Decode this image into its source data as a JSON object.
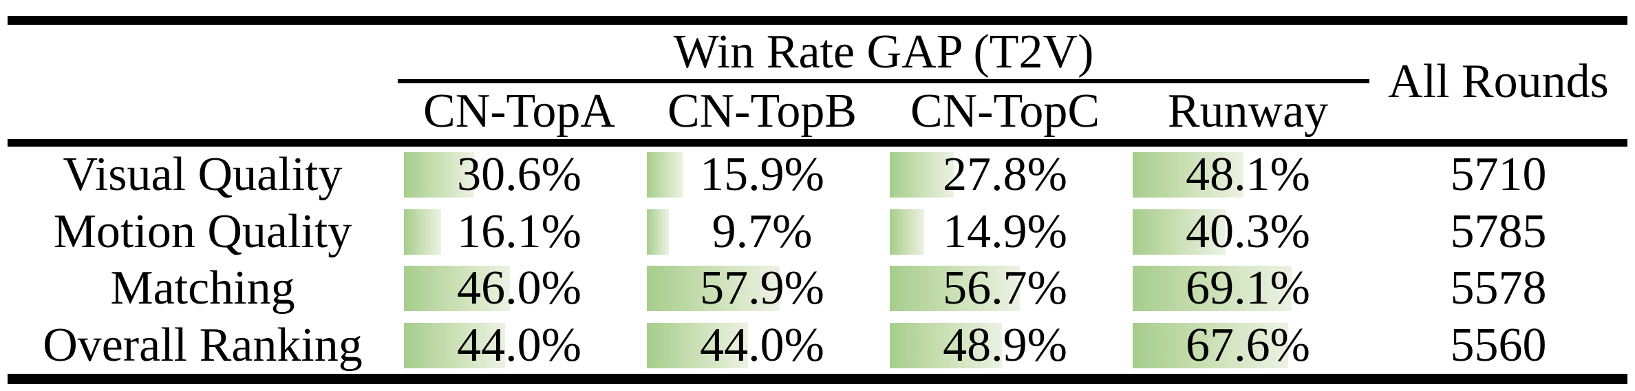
{
  "colors": {
    "rule": "#000000",
    "bar-start": "#a6cd8c",
    "bar-mid": "#cfe2ba",
    "bar-end": "#ecf2e4"
  },
  "table": {
    "group_title": "Win Rate GAP (T2V)",
    "all_rounds_header": "All Rounds",
    "columns": [
      "CN-TopA",
      "CN-TopB",
      "CN-TopC",
      "Runway"
    ],
    "rows": [
      {
        "label": "Visual Quality",
        "values": [
          30.6,
          15.9,
          27.8,
          48.1
        ],
        "display": [
          "30.6%",
          "15.9%",
          "27.8%",
          "48.1%"
        ],
        "all_rounds": "5710"
      },
      {
        "label": "Motion Quality",
        "values": [
          16.1,
          9.7,
          14.9,
          40.3
        ],
        "display": [
          "16.1%",
          "9.7%",
          "14.9%",
          "40.3%"
        ],
        "all_rounds": "5785"
      },
      {
        "label": "Matching",
        "values": [
          46.0,
          57.9,
          56.7,
          69.1
        ],
        "display": [
          "46.0%",
          "57.9%",
          "56.7%",
          "69.1%"
        ],
        "all_rounds": "5578"
      },
      {
        "label": "Overall Ranking",
        "values": [
          44.0,
          44.0,
          48.9,
          67.6
        ],
        "display": [
          "44.0%",
          "44.0%",
          "48.9%",
          "67.6%"
        ],
        "all_rounds": "5560"
      }
    ]
  },
  "chart_data": {
    "type": "table",
    "title": "Win Rate GAP (T2V)",
    "columns": [
      "CN-TopA",
      "CN-TopB",
      "CN-TopC",
      "Runway",
      "All Rounds"
    ],
    "rows": [
      {
        "label": "Visual Quality",
        "win_rate_gap_pct": [
          30.6,
          15.9,
          27.8,
          48.1
        ],
        "all_rounds": 5710
      },
      {
        "label": "Motion Quality",
        "win_rate_gap_pct": [
          16.1,
          9.7,
          14.9,
          40.3
        ],
        "all_rounds": 5785
      },
      {
        "label": "Matching",
        "win_rate_gap_pct": [
          46.0,
          57.9,
          56.7,
          69.1
        ],
        "all_rounds": 5578
      },
      {
        "label": "Overall Ranking",
        "win_rate_gap_pct": [
          44.0,
          44.0,
          48.9,
          67.6
        ],
        "all_rounds": 5560
      }
    ],
    "layout_hints": "in-cell green gradient data bars, left-anchored, width proportional to percentage (100% = full cell width); booktabs-style black rules"
  }
}
